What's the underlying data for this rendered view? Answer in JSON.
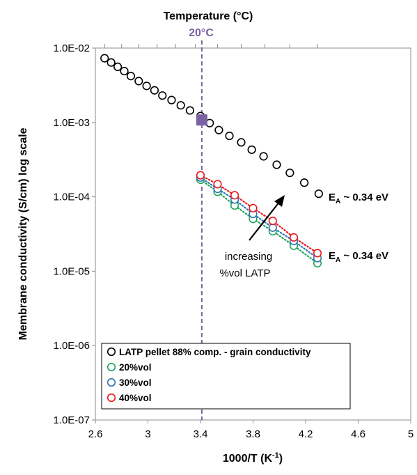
{
  "chart_data": {
    "type": "scatter",
    "title": "",
    "xlabel": "1000/T (K⁻¹)",
    "xlabel_main": "1000/T (K",
    "xlabel_sup": "-1",
    "xlabel_end": ")",
    "ylabel": "Membrane conductivity (S/cm) log scale",
    "top_axis_label": "Temperature (°C)",
    "xlim": [
      2.6,
      5.0
    ],
    "ylim": [
      1e-07,
      0.01
    ],
    "yscale": "log",
    "grid": false,
    "x_ticks": [
      "2.6",
      "3",
      "3.4",
      "3.8",
      "4.2",
      "4.6",
      "5"
    ],
    "y_ticks": [
      "1.0E-02",
      "1.0E-03",
      "1.0E-04",
      "1.0E-05",
      "1.0E-06",
      "1.0E-07"
    ],
    "legend_position": "bottom-left",
    "series": [
      {
        "name": "LATP pellet 88% comp. - grain conductivity",
        "color": "#000000",
        "line": false,
        "x": [
          2.67,
          2.72,
          2.77,
          2.82,
          2.87,
          2.93,
          2.99,
          3.05,
          3.11,
          3.18,
          3.25,
          3.32,
          3.4,
          3.47,
          3.54,
          3.62,
          3.71,
          3.79,
          3.88,
          3.98,
          4.08,
          4.19,
          4.3
        ],
        "y": [
          0.0073,
          0.0064,
          0.0056,
          0.0049,
          0.0042,
          0.0036,
          0.0031,
          0.0027,
          0.0023,
          0.002,
          0.0017,
          0.00145,
          0.00122,
          0.00098,
          0.00079,
          0.00066,
          0.00054,
          0.00043,
          0.00035,
          0.00027,
          0.00021,
          0.000155,
          0.00011
        ]
      },
      {
        "name": "20%vol",
        "color": "#21A35A",
        "line": true,
        "x": [
          3.4,
          3.53,
          3.66,
          3.8,
          3.95,
          4.11,
          4.29
        ],
        "y": [
          0.00017,
          0.000117,
          7.65e-05,
          5.05e-05,
          3.45e-05,
          2.2e-05,
          1.28e-05
        ]
      },
      {
        "name": "30%vol",
        "color": "#2E75B6",
        "line": true,
        "x": [
          3.4,
          3.53,
          3.66,
          3.8,
          3.95,
          4.11,
          4.29
        ],
        "y": [
          0.000182,
          0.000128,
          9.2e-05,
          5.9e-05,
          3.85e-05,
          2.55e-05,
          1.5e-05
        ]
      },
      {
        "name": "40%vol",
        "color": "#E8191C",
        "line": true,
        "x": [
          3.4,
          3.53,
          3.66,
          3.8,
          3.95,
          4.11,
          4.29
        ],
        "y": [
          0.000195,
          0.000148,
          0.000105,
          7.05e-05,
          4.75e-05,
          2.85e-05,
          1.75e-05
        ]
      }
    ],
    "marker_20C": {
      "x": 3.41,
      "y": 0.00108,
      "label": "20°C",
      "color": "#7B62A3"
    },
    "annotations": {
      "ea_top_main": "E",
      "ea_top_sub": "A",
      "ea_top_value": " ~ 0.34 eV",
      "ea_bottom_main": "E",
      "ea_bottom_sub": "A",
      "ea_bottom_value": " ~ 0.34 eV",
      "increasing_line1": "increasing",
      "increasing_line2": "%vol LATP"
    }
  }
}
